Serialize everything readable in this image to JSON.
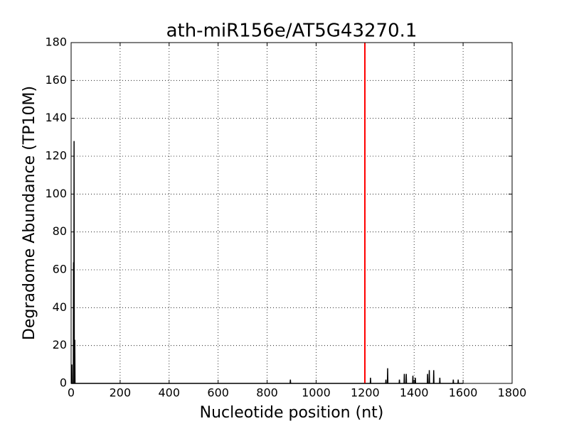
{
  "chart_data": {
    "type": "line",
    "title": "ath-miR156e/AT5G43270.1",
    "xlabel": "Nucleotide position (nt)",
    "ylabel": "Degradome Abundance (TP10M)",
    "x": [
      0,
      2,
      3,
      4,
      9,
      10,
      11,
      12,
      13,
      14,
      15,
      16,
      894,
      895,
      896,
      1221,
      1222,
      1223,
      1284,
      1285,
      1286,
      1291,
      1292,
      1293,
      1339,
      1340,
      1341,
      1359,
      1360,
      1361,
      1367,
      1368,
      1369,
      1394,
      1395,
      1396,
      1404,
      1405,
      1406,
      1454,
      1455,
      1456,
      1461,
      1462,
      1463,
      1479,
      1480,
      1481,
      1504,
      1505,
      1506,
      1559,
      1560,
      1561,
      1579,
      1580,
      1581,
      1600
    ],
    "series": [
      {
        "color": "#000000",
        "values": [
          0,
          0,
          10,
          0,
          0,
          64,
          0,
          128,
          0,
          0,
          23,
          0,
          0,
          2,
          0,
          0,
          3,
          0,
          0,
          2,
          0,
          0,
          8,
          0,
          0,
          2,
          0,
          0,
          5,
          0,
          0,
          5,
          0,
          0,
          4,
          0,
          0,
          3,
          0,
          0,
          5,
          0,
          0,
          7,
          0,
          0,
          7,
          0,
          0,
          3,
          0,
          0,
          2,
          0,
          0,
          2,
          0,
          0
        ]
      }
    ],
    "vline": {
      "x": 1199,
      "color": "#ff0000"
    },
    "xlim": [
      0,
      1800
    ],
    "xticks": [
      0,
      200,
      400,
      600,
      800,
      1000,
      1200,
      1400,
      1600,
      1800
    ],
    "ylim": [
      0,
      180
    ],
    "yticks": [
      0,
      20,
      40,
      60,
      80,
      100,
      120,
      140,
      160,
      180
    ],
    "grid": true
  }
}
